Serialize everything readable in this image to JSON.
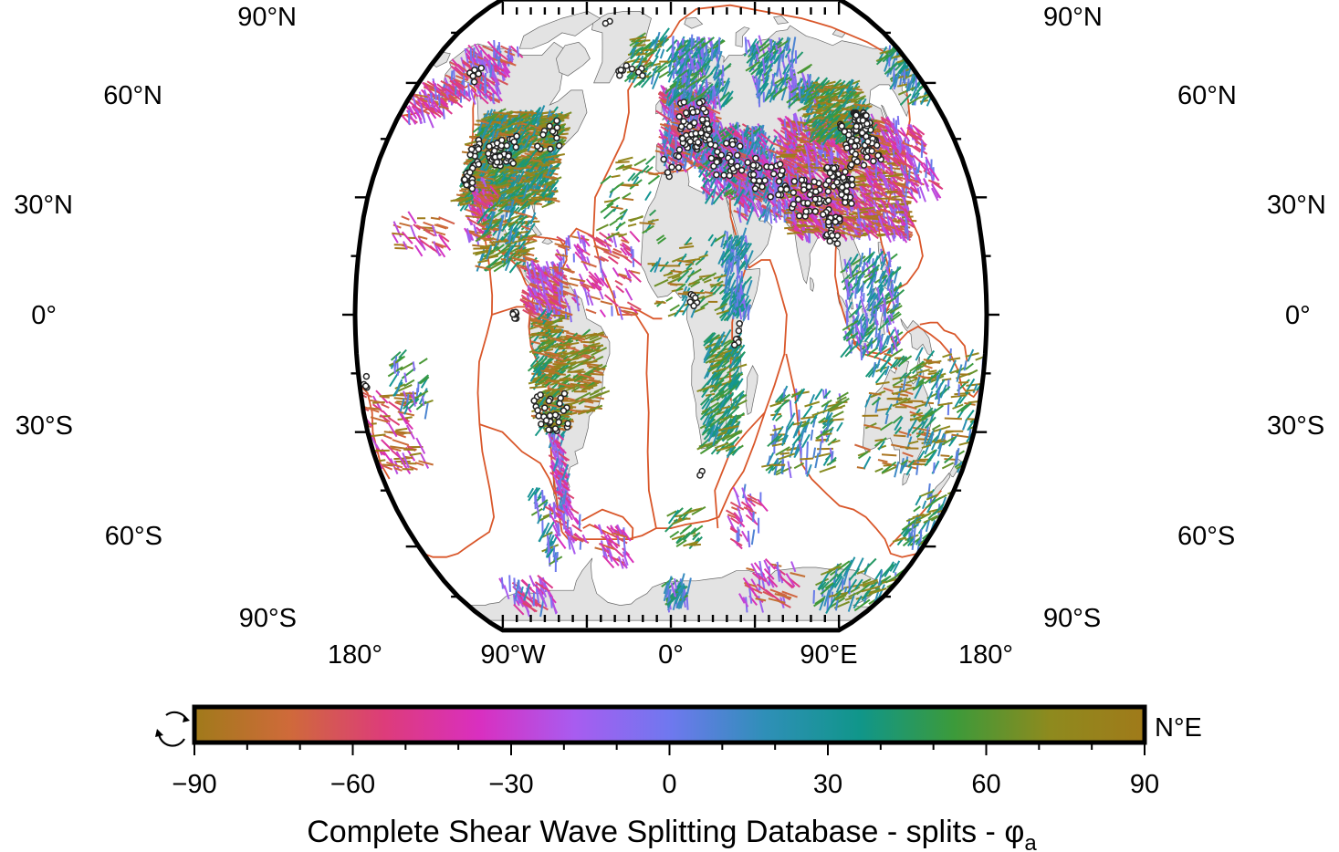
{
  "map": {
    "projection": "Robinson",
    "land_color": "#e3e3e3",
    "plate_boundary_color": "#d9572a",
    "station_color": "#ffffff",
    "latitude_labels": {
      "left": [
        "90°N",
        "60°N",
        "30°N",
        "0°",
        "30°S",
        "60°S",
        "90°S"
      ],
      "right": [
        "90°N",
        "60°N",
        "30°N",
        "0°",
        "30°S",
        "60°S",
        "90°S"
      ]
    },
    "longitude_labels": [
      "180°",
      "90°W",
      "0°",
      "90°E",
      "180°"
    ]
  },
  "colorbar": {
    "ticks": [
      "−90",
      "−60",
      "−30",
      "0",
      "30",
      "60",
      "90"
    ],
    "unit": "N°E",
    "cyclic_icon": "cyclic-arrows-icon",
    "title": "Complete Shear Wave Splitting Database - splits - ",
    "title_symbol": "φ",
    "title_subscript": "a",
    "gradient": [
      "#a07a1a",
      "#cf6a3a",
      "#dd3c7a",
      "#d92fc0",
      "#a85cf0",
      "#6f78ef",
      "#2f8fb8",
      "#10968a",
      "#3c9a3a",
      "#8e8a1e",
      "#a07a1a"
    ]
  },
  "chart_data": {
    "type": "map",
    "title": "Complete Shear Wave Splitting Database - splits - φa",
    "xlabel": "",
    "ylabel": "",
    "x_ticks": [
      "180°",
      "90°W",
      "0°",
      "90°E",
      "180°"
    ],
    "y_ticks": [
      "90°N",
      "60°N",
      "30°N",
      "0°",
      "30°S",
      "60°S",
      "90°S"
    ],
    "color_scale": {
      "variable": "φa",
      "unit": "N°E",
      "range": [
        -90,
        90
      ],
      "cyclic": true
    },
    "grid": false
  }
}
